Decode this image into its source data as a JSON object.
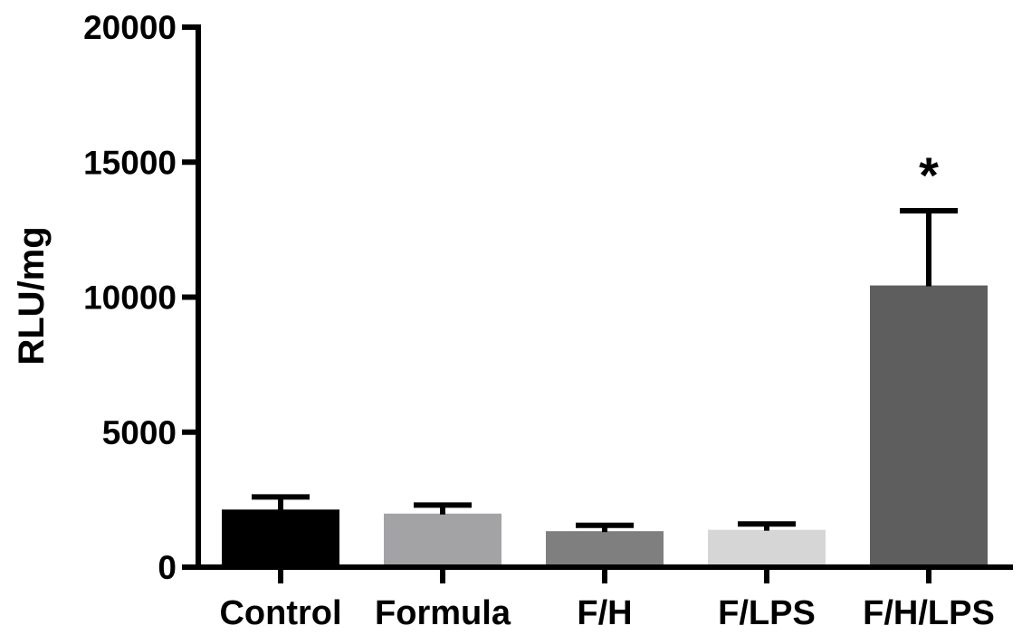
{
  "chart_data": {
    "type": "bar",
    "title": "",
    "xlabel": "",
    "ylabel": "RLU/mg",
    "ylim": [
      0,
      20000
    ],
    "yticks": [
      0,
      5000,
      10000,
      15000,
      20000
    ],
    "ytick_labels": [
      "0",
      "5000",
      "10000",
      "15000",
      "20000"
    ],
    "categories": [
      "Control",
      "Formula",
      "F/H",
      "F/LPS",
      "F/H/LPS"
    ],
    "values": [
      2100,
      1950,
      1300,
      1350,
      10400
    ],
    "errors": [
      500,
      350,
      250,
      250,
      2800
    ],
    "bar_colors": [
      "#000000",
      "#a3a3a6",
      "#7f7f7f",
      "#d6d6d6",
      "#5e5e5e"
    ],
    "annotations": [
      {
        "category": "F/H/LPS",
        "text": "*"
      }
    ],
    "grid": false,
    "legend": "none"
  }
}
